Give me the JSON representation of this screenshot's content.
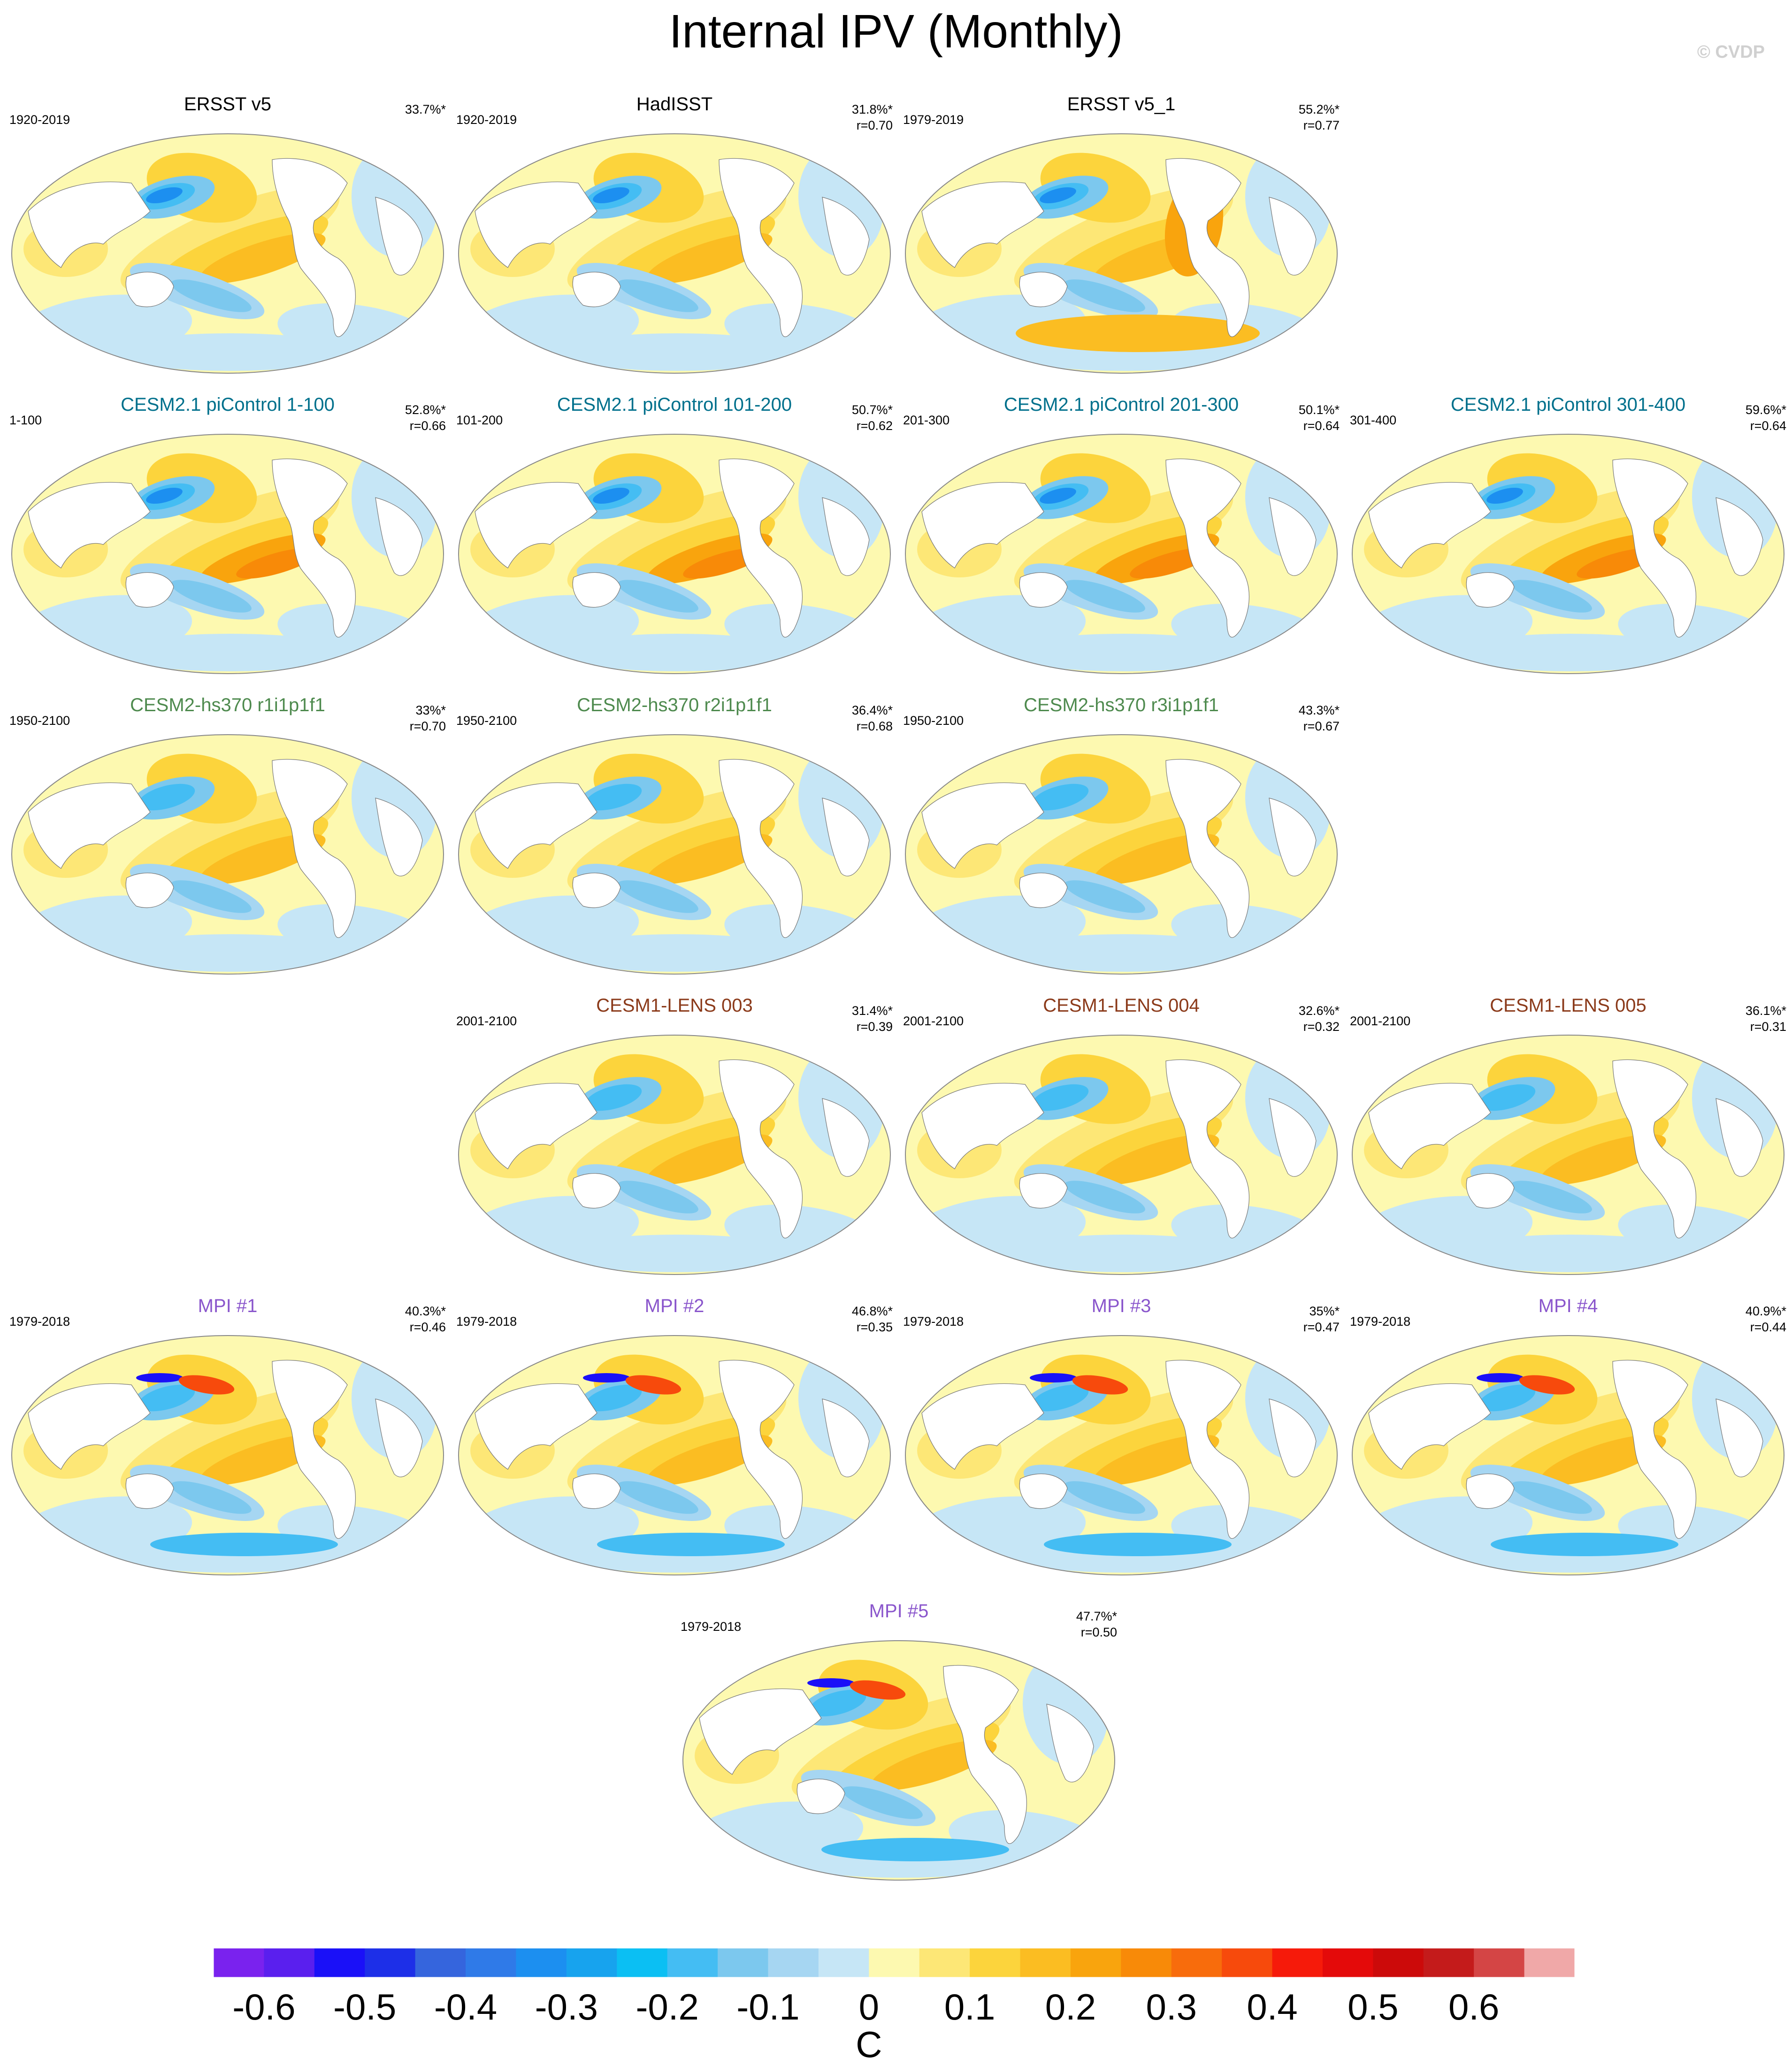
{
  "title": "Internal IPV (Monthly)",
  "copyright": "© CVDP",
  "colors": {
    "obs_title": "#000000",
    "piControl_title": "#00708c",
    "hs370_title": "#4e8a4e",
    "lens_title": "#8b3a1a",
    "mpi_title": "#8a56cc",
    "land": "#ffffff",
    "outline": "#888888"
  },
  "panels": [
    {
      "title": "ERSST v5",
      "group": "obs",
      "period": "1920-2019",
      "pct": "33.7%*",
      "r": ""
    },
    {
      "title": "HadISST",
      "group": "obs",
      "period": "1920-2019",
      "pct": "31.8%*",
      "r": "r=0.70"
    },
    {
      "title": "ERSST v5_1",
      "group": "obs",
      "period": "1979-2019",
      "pct": "55.2%*",
      "r": "r=0.77"
    },
    {
      "title": "CESM2.1 piControl 1-100",
      "group": "piControl",
      "period": "1-100",
      "pct": "52.8%*",
      "r": "r=0.66"
    },
    {
      "title": "CESM2.1 piControl 101-200",
      "group": "piControl",
      "period": "101-200",
      "pct": "50.7%*",
      "r": "r=0.62"
    },
    {
      "title": "CESM2.1 piControl 201-300",
      "group": "piControl",
      "period": "201-300",
      "pct": "50.1%*",
      "r": "r=0.64"
    },
    {
      "title": "CESM2.1 piControl 301-400",
      "group": "piControl",
      "period": "301-400",
      "pct": "59.6%*",
      "r": "r=0.64"
    },
    {
      "title": "CESM2-hs370 r1i1p1f1",
      "group": "hs370",
      "period": "1950-2100",
      "pct": "33%*",
      "r": "r=0.70"
    },
    {
      "title": "CESM2-hs370 r2i1p1f1",
      "group": "hs370",
      "period": "1950-2100",
      "pct": "36.4%*",
      "r": "r=0.68"
    },
    {
      "title": "CESM2-hs370 r3i1p1f1",
      "group": "hs370",
      "period": "1950-2100",
      "pct": "43.3%*",
      "r": "r=0.67"
    },
    {
      "title": "CESM1-LENS 003",
      "group": "lens",
      "period": "2001-2100",
      "pct": "31.4%*",
      "r": "r=0.39"
    },
    {
      "title": "CESM1-LENS 004",
      "group": "lens",
      "period": "2001-2100",
      "pct": "32.6%*",
      "r": "r=0.32"
    },
    {
      "title": "CESM1-LENS 005",
      "group": "lens",
      "period": "2001-2100",
      "pct": "36.1%*",
      "r": "r=0.31"
    },
    {
      "title": "MPI #1",
      "group": "mpi",
      "period": "1979-2018",
      "pct": "40.3%*",
      "r": "r=0.46"
    },
    {
      "title": "MPI #2",
      "group": "mpi",
      "period": "1979-2018",
      "pct": "46.8%*",
      "r": "r=0.35"
    },
    {
      "title": "MPI #3",
      "group": "mpi",
      "period": "1979-2018",
      "pct": "35%*",
      "r": "r=0.47"
    },
    {
      "title": "MPI #4",
      "group": "mpi",
      "period": "1979-2018",
      "pct": "40.9%*",
      "r": "r=0.44"
    },
    {
      "title": "MPI #5",
      "group": "mpi",
      "period": "1979-2018",
      "pct": "47.7%*",
      "r": "r=0.50"
    }
  ],
  "chart_data": {
    "type": "heatmap",
    "projection": "global map (Pacific-centered)",
    "variable": "SST regression onto IPV index",
    "colorbar": {
      "units": "C",
      "tick_labels": [
        "-0.6",
        "-0.5",
        "-0.4",
        "-0.3",
        "-0.2",
        "-0.1",
        "0",
        "0.1",
        "0.2",
        "0.3",
        "0.4",
        "0.5",
        "0.6"
      ],
      "levels": [
        -0.65,
        -0.6,
        -0.55,
        -0.5,
        -0.45,
        -0.4,
        -0.35,
        -0.3,
        -0.25,
        -0.2,
        -0.15,
        -0.1,
        -0.05,
        0,
        0.05,
        0.1,
        0.15,
        0.2,
        0.25,
        0.3,
        0.35,
        0.4,
        0.45,
        0.5,
        0.55,
        0.6,
        0.65,
        0.7
      ],
      "colors": [
        "#7a22ee",
        "#5a1fee",
        "#1a10f8",
        "#1d2fe8",
        "#3565dd",
        "#2f7ae8",
        "#1c8ff0",
        "#17a3ee",
        "#0bbff3",
        "#44bdf3",
        "#7cc8ee",
        "#a6d6f2",
        "#c6e6f6",
        "#fdf9b0",
        "#fde776",
        "#fcd43c",
        "#fbbd22",
        "#f9a40d",
        "#f88a08",
        "#f86c0c",
        "#f74a0c",
        "#f61a0a",
        "#e40a0a",
        "#cc0a0a",
        "#c41b1b",
        "#d44545",
        "#f0a8a8"
      ]
    }
  }
}
